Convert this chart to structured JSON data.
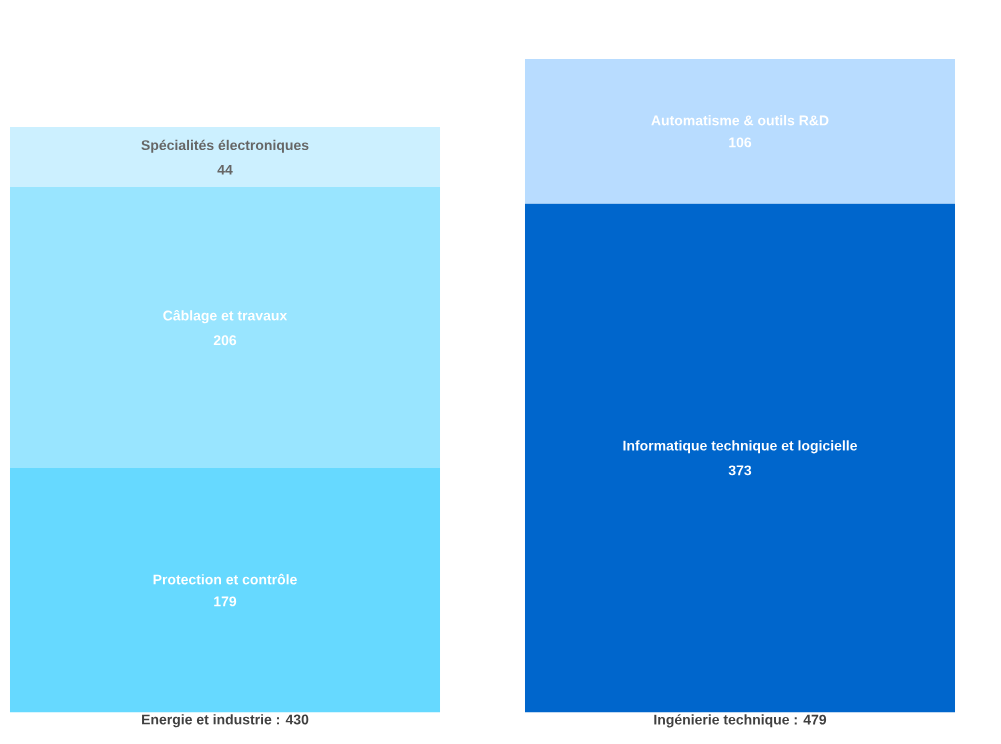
{
  "chart_data": {
    "type": "bar",
    "stacked": true,
    "data_labels": true,
    "tick_labels": "x",
    "categories": [
      "Energie et industrie : 430",
      "Ingénierie technique : 479"
    ],
    "series": [
      {
        "name": "Protection et contrôle",
        "color": "#66d9ff",
        "values": [
          179,
          null
        ]
      },
      {
        "name": "Câblage et travaux",
        "color": "#99e5ff",
        "values": [
          206,
          null
        ]
      },
      {
        "name": "Spécialités électroniques",
        "color": "#ccf0ff",
        "values": [
          44,
          null
        ]
      },
      {
        "name": "Informatique technique et logicielle",
        "color": "#0066cc",
        "values": [
          null,
          373
        ]
      },
      {
        "name": "Automatisme & outils R&D",
        "color": "#b8dcff",
        "values": [
          null,
          106
        ]
      }
    ]
  }
}
